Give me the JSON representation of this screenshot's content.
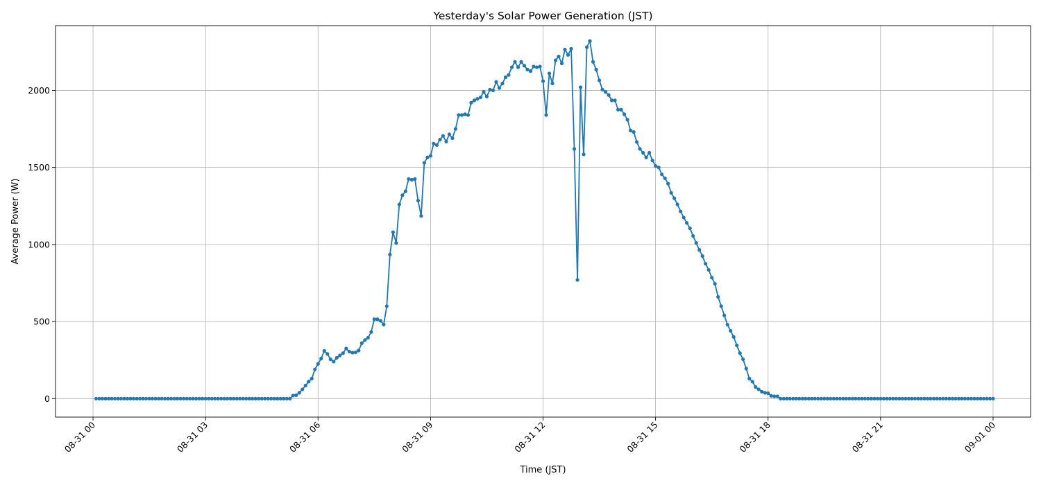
{
  "chart_data": {
    "type": "line",
    "title": "Yesterday's Solar Power Generation (JST)",
    "xlabel": "Time (JST)",
    "ylabel": "Average Power (W)",
    "x_ticks": [
      {
        "label": "08-31 00",
        "hour": 0
      },
      {
        "label": "08-31 03",
        "hour": 3
      },
      {
        "label": "08-31 06",
        "hour": 6
      },
      {
        "label": "08-31 09",
        "hour": 9
      },
      {
        "label": "08-31 12",
        "hour": 12
      },
      {
        "label": "08-31 15",
        "hour": 15
      },
      {
        "label": "08-31 18",
        "hour": 18
      },
      {
        "label": "08-31 21",
        "hour": 21
      },
      {
        "label": "09-01 00",
        "hour": 24
      }
    ],
    "y_ticks": [
      0,
      500,
      1000,
      1500,
      2000
    ],
    "xlim_hours": [
      -1.0,
      25.0
    ],
    "ylim": [
      -120,
      2420
    ],
    "grid": true,
    "line_color": "#1f77b4",
    "series": [
      {
        "marker": "circle",
        "points": [
          [
            0.083,
            0
          ],
          [
            0.167,
            0
          ],
          [
            0.25,
            0
          ],
          [
            0.333,
            0
          ],
          [
            0.417,
            0
          ],
          [
            0.5,
            0
          ],
          [
            0.583,
            0
          ],
          [
            0.667,
            0
          ],
          [
            0.75,
            0
          ],
          [
            0.833,
            0
          ],
          [
            0.917,
            0
          ],
          [
            1.0,
            0
          ],
          [
            1.083,
            0
          ],
          [
            1.167,
            0
          ],
          [
            1.25,
            0
          ],
          [
            1.333,
            0
          ],
          [
            1.417,
            0
          ],
          [
            1.5,
            0
          ],
          [
            1.583,
            0
          ],
          [
            1.667,
            0
          ],
          [
            1.75,
            0
          ],
          [
            1.833,
            0
          ],
          [
            1.917,
            0
          ],
          [
            2.0,
            0
          ],
          [
            2.083,
            0
          ],
          [
            2.167,
            0
          ],
          [
            2.25,
            0
          ],
          [
            2.333,
            0
          ],
          [
            2.417,
            0
          ],
          [
            2.5,
            0
          ],
          [
            2.583,
            0
          ],
          [
            2.667,
            0
          ],
          [
            2.75,
            0
          ],
          [
            2.833,
            0
          ],
          [
            2.917,
            0
          ],
          [
            3.0,
            0
          ],
          [
            3.083,
            0
          ],
          [
            3.167,
            0
          ],
          [
            3.25,
            0
          ],
          [
            3.333,
            0
          ],
          [
            3.417,
            0
          ],
          [
            3.5,
            0
          ],
          [
            3.583,
            0
          ],
          [
            3.667,
            0
          ],
          [
            3.75,
            0
          ],
          [
            3.833,
            0
          ],
          [
            3.917,
            0
          ],
          [
            4.0,
            0
          ],
          [
            4.083,
            0
          ],
          [
            4.167,
            0
          ],
          [
            4.25,
            0
          ],
          [
            4.333,
            0
          ],
          [
            4.417,
            0
          ],
          [
            4.5,
            0
          ],
          [
            4.583,
            0
          ],
          [
            4.667,
            0
          ],
          [
            4.75,
            0
          ],
          [
            4.833,
            0
          ],
          [
            4.917,
            0
          ],
          [
            5.0,
            0
          ],
          [
            5.083,
            0
          ],
          [
            5.167,
            0
          ],
          [
            5.25,
            0
          ],
          [
            5.333,
            20
          ],
          [
            5.417,
            22
          ],
          [
            5.5,
            38
          ],
          [
            5.583,
            60
          ],
          [
            5.667,
            85
          ],
          [
            5.75,
            110
          ],
          [
            5.833,
            130
          ],
          [
            5.917,
            190
          ],
          [
            6.0,
            225
          ],
          [
            6.083,
            260
          ],
          [
            6.167,
            310
          ],
          [
            6.25,
            290
          ],
          [
            6.333,
            255
          ],
          [
            6.417,
            240
          ],
          [
            6.5,
            265
          ],
          [
            6.583,
            280
          ],
          [
            6.667,
            295
          ],
          [
            6.75,
            325
          ],
          [
            6.833,
            305
          ],
          [
            6.917,
            298
          ],
          [
            7.0,
            300
          ],
          [
            7.083,
            312
          ],
          [
            7.167,
            360
          ],
          [
            7.25,
            380
          ],
          [
            7.333,
            395
          ],
          [
            7.417,
            432
          ],
          [
            7.5,
            515
          ],
          [
            7.583,
            515
          ],
          [
            7.667,
            505
          ],
          [
            7.75,
            480
          ],
          [
            7.833,
            600
          ],
          [
            7.917,
            935
          ],
          [
            8.0,
            1080
          ],
          [
            8.083,
            1010
          ],
          [
            8.167,
            1260
          ],
          [
            8.25,
            1320
          ],
          [
            8.333,
            1345
          ],
          [
            8.417,
            1425
          ],
          [
            8.5,
            1420
          ],
          [
            8.583,
            1425
          ],
          [
            8.667,
            1285
          ],
          [
            8.75,
            1185
          ],
          [
            8.833,
            1530
          ],
          [
            8.917,
            1565
          ],
          [
            9.0,
            1575
          ],
          [
            9.083,
            1655
          ],
          [
            9.167,
            1645
          ],
          [
            9.25,
            1680
          ],
          [
            9.333,
            1705
          ],
          [
            9.417,
            1668
          ],
          [
            9.5,
            1715
          ],
          [
            9.583,
            1690
          ],
          [
            9.667,
            1750
          ],
          [
            9.75,
            1840
          ],
          [
            9.833,
            1840
          ],
          [
            9.917,
            1845
          ],
          [
            10.0,
            1840
          ],
          [
            10.083,
            1920
          ],
          [
            10.167,
            1935
          ],
          [
            10.25,
            1945
          ],
          [
            10.333,
            1955
          ],
          [
            10.417,
            1990
          ],
          [
            10.5,
            1960
          ],
          [
            10.583,
            2005
          ],
          [
            10.667,
            2000
          ],
          [
            10.75,
            2055
          ],
          [
            10.833,
            2015
          ],
          [
            10.917,
            2045
          ],
          [
            11.0,
            2085
          ],
          [
            11.083,
            2100
          ],
          [
            11.167,
            2150
          ],
          [
            11.25,
            2185
          ],
          [
            11.333,
            2150
          ],
          [
            11.417,
            2185
          ],
          [
            11.5,
            2160
          ],
          [
            11.583,
            2135
          ],
          [
            11.667,
            2125
          ],
          [
            11.75,
            2155
          ],
          [
            11.833,
            2150
          ],
          [
            11.917,
            2155
          ],
          [
            12.0,
            2060
          ],
          [
            12.083,
            1840
          ],
          [
            12.167,
            2110
          ],
          [
            12.25,
            2045
          ],
          [
            12.333,
            2195
          ],
          [
            12.417,
            2220
          ],
          [
            12.5,
            2175
          ],
          [
            12.583,
            2265
          ],
          [
            12.667,
            2230
          ],
          [
            12.75,
            2270
          ],
          [
            12.833,
            1620
          ],
          [
            12.917,
            770
          ],
          [
            13.0,
            2020
          ],
          [
            13.083,
            1585
          ],
          [
            13.167,
            2280
          ],
          [
            13.25,
            2320
          ],
          [
            13.333,
            2185
          ],
          [
            13.417,
            2135
          ],
          [
            13.5,
            2065
          ],
          [
            13.583,
            2005
          ],
          [
            13.667,
            1990
          ],
          [
            13.75,
            1970
          ],
          [
            13.833,
            1935
          ],
          [
            13.917,
            1935
          ],
          [
            14.0,
            1875
          ],
          [
            14.083,
            1875
          ],
          [
            14.167,
            1845
          ],
          [
            14.25,
            1810
          ],
          [
            14.333,
            1740
          ],
          [
            14.417,
            1730
          ],
          [
            14.5,
            1665
          ],
          [
            14.583,
            1620
          ],
          [
            14.667,
            1595
          ],
          [
            14.75,
            1565
          ],
          [
            14.833,
            1595
          ],
          [
            14.917,
            1545
          ],
          [
            15.0,
            1510
          ],
          [
            15.083,
            1500
          ],
          [
            15.167,
            1455
          ],
          [
            15.25,
            1430
          ],
          [
            15.333,
            1395
          ],
          [
            15.417,
            1335
          ],
          [
            15.5,
            1300
          ],
          [
            15.583,
            1260
          ],
          [
            15.667,
            1215
          ],
          [
            15.75,
            1175
          ],
          [
            15.833,
            1140
          ],
          [
            15.917,
            1105
          ],
          [
            16.0,
            1055
          ],
          [
            16.083,
            1010
          ],
          [
            16.167,
            965
          ],
          [
            16.25,
            925
          ],
          [
            16.333,
            875
          ],
          [
            16.417,
            835
          ],
          [
            16.5,
            785
          ],
          [
            16.583,
            745
          ],
          [
            16.667,
            660
          ],
          [
            16.75,
            600
          ],
          [
            16.833,
            540
          ],
          [
            16.917,
            480
          ],
          [
            17.0,
            440
          ],
          [
            17.083,
            400
          ],
          [
            17.167,
            345
          ],
          [
            17.25,
            295
          ],
          [
            17.333,
            255
          ],
          [
            17.417,
            195
          ],
          [
            17.5,
            130
          ],
          [
            17.583,
            110
          ],
          [
            17.667,
            75
          ],
          [
            17.75,
            60
          ],
          [
            17.833,
            45
          ],
          [
            17.917,
            38
          ],
          [
            18.0,
            35
          ],
          [
            18.083,
            18
          ],
          [
            18.167,
            15
          ],
          [
            18.25,
            15
          ],
          [
            18.333,
            0
          ],
          [
            18.417,
            0
          ],
          [
            18.5,
            0
          ],
          [
            18.583,
            0
          ],
          [
            18.667,
            0
          ],
          [
            18.75,
            0
          ],
          [
            18.833,
            0
          ],
          [
            18.917,
            0
          ],
          [
            19.0,
            0
          ],
          [
            19.083,
            0
          ],
          [
            19.167,
            0
          ],
          [
            19.25,
            0
          ],
          [
            19.333,
            0
          ],
          [
            19.417,
            0
          ],
          [
            19.5,
            0
          ],
          [
            19.583,
            0
          ],
          [
            19.667,
            0
          ],
          [
            19.75,
            0
          ],
          [
            19.833,
            0
          ],
          [
            19.917,
            0
          ],
          [
            20.0,
            0
          ],
          [
            20.083,
            0
          ],
          [
            20.167,
            0
          ],
          [
            20.25,
            0
          ],
          [
            20.333,
            0
          ],
          [
            20.417,
            0
          ],
          [
            20.5,
            0
          ],
          [
            20.583,
            0
          ],
          [
            20.667,
            0
          ],
          [
            20.75,
            0
          ],
          [
            20.833,
            0
          ],
          [
            20.917,
            0
          ],
          [
            21.0,
            0
          ],
          [
            21.083,
            0
          ],
          [
            21.167,
            0
          ],
          [
            21.25,
            0
          ],
          [
            21.333,
            0
          ],
          [
            21.417,
            0
          ],
          [
            21.5,
            0
          ],
          [
            21.583,
            0
          ],
          [
            21.667,
            0
          ],
          [
            21.75,
            0
          ],
          [
            21.833,
            0
          ],
          [
            21.917,
            0
          ],
          [
            22.0,
            0
          ],
          [
            22.083,
            0
          ],
          [
            22.167,
            0
          ],
          [
            22.25,
            0
          ],
          [
            22.333,
            0
          ],
          [
            22.417,
            0
          ],
          [
            22.5,
            0
          ],
          [
            22.583,
            0
          ],
          [
            22.667,
            0
          ],
          [
            22.75,
            0
          ],
          [
            22.833,
            0
          ],
          [
            22.917,
            0
          ],
          [
            23.0,
            0
          ],
          [
            23.083,
            0
          ],
          [
            23.167,
            0
          ],
          [
            23.25,
            0
          ],
          [
            23.333,
            0
          ],
          [
            23.417,
            0
          ],
          [
            23.5,
            0
          ],
          [
            23.583,
            0
          ],
          [
            23.667,
            0
          ],
          [
            23.75,
            0
          ],
          [
            23.833,
            0
          ],
          [
            23.917,
            0
          ],
          [
            24.0,
            0
          ]
        ]
      }
    ]
  }
}
